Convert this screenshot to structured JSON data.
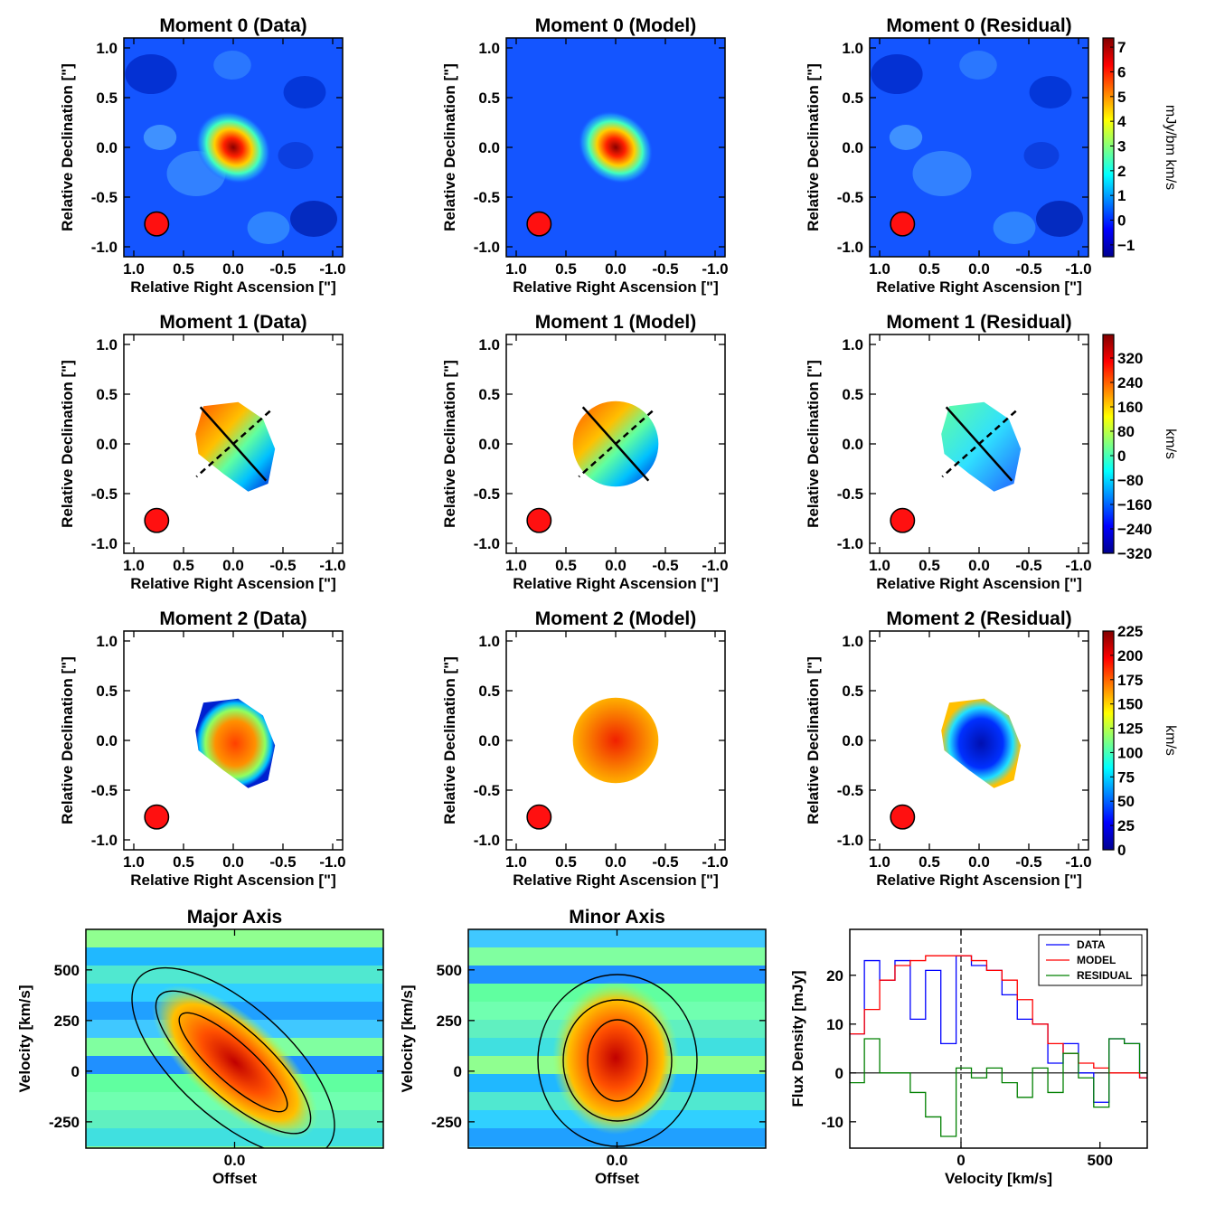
{
  "chart_data": [
    {
      "type": "image",
      "title": "Moment 0 (Data)",
      "xlabel": "Relative Right Ascension [\"]",
      "ylabel": "Relative Declination [\"]",
      "xlim": [
        1.1,
        -1.1
      ],
      "ylim": [
        -1.1,
        1.1
      ],
      "xticks": [
        {
          "value": 1,
          "label": "1.0"
        },
        0.5,
        {
          "value": 0,
          "label": "0.0"
        },
        -0.5,
        {
          "value": -1,
          "label": "-1.0"
        }
      ],
      "yticks": [
        {
          "value": 1,
          "label": "1.0"
        },
        0.5,
        {
          "value": 0,
          "label": "0.0"
        },
        -0.5,
        {
          "value": -1,
          "label": "-1.0"
        }
      ],
      "colormap": "jet"
    },
    {
      "type": "image",
      "title": "Moment 0 (Model)",
      "xlabel": "Relative Right Ascension [\"]",
      "ylabel": "Relative Declination [\"]",
      "xlim": [
        1.1,
        -1.1
      ],
      "ylim": [
        -1.1,
        1.1
      ],
      "xticks": [
        {
          "value": 1,
          "label": "1.0"
        },
        0.5,
        {
          "value": 0,
          "label": "0.0"
        },
        -0.5,
        {
          "value": -1,
          "label": "-1.0"
        }
      ],
      "yticks": [
        {
          "value": 1,
          "label": "1.0"
        },
        0.5,
        {
          "value": 0,
          "label": "0.0"
        },
        -0.5,
        {
          "value": -1,
          "label": "-1.0"
        }
      ],
      "colormap": "jet"
    },
    {
      "type": "image",
      "title": "Moment 0 (Residual)",
      "xlabel": "Relative Right Ascension [\"]",
      "ylabel": "Relative Declination [\"]",
      "xlim": [
        1.1,
        -1.1
      ],
      "ylim": [
        -1.1,
        1.1
      ],
      "xticks": [
        {
          "value": 1,
          "label": "1.0"
        },
        0.5,
        {
          "value": 0,
          "label": "0.0"
        },
        -0.5,
        {
          "value": -1,
          "label": "-1.0"
        }
      ],
      "yticks": [
        {
          "value": 1,
          "label": "1.0"
        },
        0.5,
        {
          "value": 0,
          "label": "0.0"
        },
        -0.5,
        {
          "value": -1,
          "label": "-1.0"
        }
      ],
      "colormap": "jet",
      "colorbar": {
        "label": "mJy/bm km/s",
        "lim": [
          -1.48,
          7.37
        ],
        "ticks": [
          7,
          6,
          5,
          4,
          3,
          2,
          1,
          0,
          {
            "value": -1,
            "label": "−1"
          }
        ]
      }
    },
    {
      "type": "image",
      "title": "Moment 1 (Data)",
      "xlabel": "Relative Right Ascension [\"]",
      "ylabel": "Relative Declination [\"]",
      "xlim": [
        1.1,
        -1.1
      ],
      "ylim": [
        -1.1,
        1.1
      ],
      "xticks": [
        {
          "value": 1,
          "label": "1.0"
        },
        0.5,
        {
          "value": 0,
          "label": "0.0"
        },
        -0.5,
        {
          "value": -1,
          "label": "-1.0"
        }
      ],
      "yticks": [
        {
          "value": 1,
          "label": "1.0"
        },
        0.5,
        {
          "value": 0,
          "label": "0.0"
        },
        -0.5,
        {
          "value": -1,
          "label": "-1.0"
        }
      ],
      "colormap": "jet"
    },
    {
      "type": "image",
      "title": "Moment 1 (Model)",
      "xlabel": "Relative Right Ascension [\"]",
      "ylabel": "Relative Declination [\"]",
      "xlim": [
        1.1,
        -1.1
      ],
      "ylim": [
        -1.1,
        1.1
      ],
      "xticks": [
        {
          "value": 1,
          "label": "1.0"
        },
        0.5,
        {
          "value": 0,
          "label": "0.0"
        },
        -0.5,
        {
          "value": -1,
          "label": "-1.0"
        }
      ],
      "yticks": [
        {
          "value": 1,
          "label": "1.0"
        },
        0.5,
        {
          "value": 0,
          "label": "0.0"
        },
        -0.5,
        {
          "value": -1,
          "label": "-1.0"
        }
      ],
      "colormap": "jet"
    },
    {
      "type": "image",
      "title": "Moment 1 (Residual)",
      "xlabel": "Relative Right Ascension [\"]",
      "ylabel": "Relative Declination [\"]",
      "xlim": [
        1.1,
        -1.1
      ],
      "ylim": [
        -1.1,
        1.1
      ],
      "xticks": [
        {
          "value": 1,
          "label": "1.0"
        },
        0.5,
        {
          "value": 0,
          "label": "0.0"
        },
        -0.5,
        {
          "value": -1,
          "label": "-1.0"
        }
      ],
      "yticks": [
        {
          "value": 1,
          "label": "1.0"
        },
        0.5,
        {
          "value": 0,
          "label": "0.0"
        },
        -0.5,
        {
          "value": -1,
          "label": "-1.0"
        }
      ],
      "colormap": "jet",
      "colorbar": {
        "label": "km/s",
        "lim": [
          -320,
          397
        ],
        "ticks": [
          320,
          240,
          160,
          80,
          0,
          {
            "value": -80,
            "label": "−80"
          },
          {
            "value": -160,
            "label": "−160"
          },
          {
            "value": -240,
            "label": "−240"
          },
          {
            "value": -320,
            "label": "−320"
          }
        ]
      }
    },
    {
      "type": "image",
      "title": "Moment 2 (Data)",
      "xlabel": "Relative Right Ascension [\"]",
      "ylabel": "Relative Declination [\"]",
      "xlim": [
        1.1,
        -1.1
      ],
      "ylim": [
        -1.1,
        1.1
      ],
      "xticks": [
        {
          "value": 1,
          "label": "1.0"
        },
        0.5,
        {
          "value": 0,
          "label": "0.0"
        },
        -0.5,
        {
          "value": -1,
          "label": "-1.0"
        }
      ],
      "yticks": [
        {
          "value": 1,
          "label": "1.0"
        },
        0.5,
        {
          "value": 0,
          "label": "0.0"
        },
        -0.5,
        {
          "value": -1,
          "label": "-1.0"
        }
      ],
      "colormap": "jet"
    },
    {
      "type": "image",
      "title": "Moment 2 (Model)",
      "xlabel": "Relative Right Ascension [\"]",
      "ylabel": "Relative Declination [\"]",
      "xlim": [
        1.1,
        -1.1
      ],
      "ylim": [
        -1.1,
        1.1
      ],
      "xticks": [
        {
          "value": 1,
          "label": "1.0"
        },
        0.5,
        {
          "value": 0,
          "label": "0.0"
        },
        -0.5,
        {
          "value": -1,
          "label": "-1.0"
        }
      ],
      "yticks": [
        {
          "value": 1,
          "label": "1.0"
        },
        0.5,
        {
          "value": 0,
          "label": "0.0"
        },
        -0.5,
        {
          "value": -1,
          "label": "-1.0"
        }
      ],
      "colormap": "jet"
    },
    {
      "type": "image",
      "title": "Moment 2 (Residual)",
      "xlabel": "Relative Right Ascension [\"]",
      "ylabel": "Relative Declination [\"]",
      "xlim": [
        1.1,
        -1.1
      ],
      "ylim": [
        -1.1,
        1.1
      ],
      "xticks": [
        {
          "value": 1,
          "label": "1.0"
        },
        0.5,
        {
          "value": 0,
          "label": "0.0"
        },
        -0.5,
        {
          "value": -1,
          "label": "-1.0"
        }
      ],
      "yticks": [
        {
          "value": 1,
          "label": "1.0"
        },
        0.5,
        {
          "value": 0,
          "label": "0.0"
        },
        -0.5,
        {
          "value": -1,
          "label": "-1.0"
        }
      ],
      "colormap": "jet",
      "colorbar": {
        "label": "km/s",
        "lim": [
          0,
          225
        ],
        "ticks": [
          225,
          200,
          175,
          150,
          125,
          100,
          75,
          50,
          25,
          0
        ]
      }
    },
    {
      "type": "image",
      "title": "Major Axis",
      "xlabel": "Offset",
      "ylabel": "Velocity [km/s]",
      "xlim": [
        -1.1,
        1.1
      ],
      "ylim": [
        -380,
        700
      ],
      "xticks": [
        {
          "value": 0,
          "label": "0.0"
        }
      ],
      "yticks": [
        500,
        250,
        0,
        -250
      ],
      "colormap": "jet"
    },
    {
      "type": "image",
      "title": "Minor Axis",
      "xlabel": "Offset",
      "ylabel": "Velocity [km/s]",
      "xlim": [
        -1.1,
        1.1
      ],
      "ylim": [
        -380,
        700
      ],
      "xticks": [
        {
          "value": 0,
          "label": "0.0"
        }
      ],
      "yticks": [
        500,
        250,
        0,
        -250
      ],
      "colormap": "jet"
    },
    {
      "type": "line",
      "step": true,
      "xlabel": "Velocity [km/s]",
      "ylabel": "Flux Density [mJy]",
      "xlim": [
        -400,
        670
      ],
      "ylim": [
        -15.4,
        29.4
      ],
      "xticks": [
        0,
        500
      ],
      "yticks": [
        -10,
        0,
        10,
        20
      ],
      "vlines": [
        0
      ],
      "hlines": [
        0
      ],
      "legend": "upper right",
      "x": [
        -375,
        -320,
        -265,
        -210,
        -155,
        -100,
        -45,
        10,
        65,
        120,
        175,
        230,
        285,
        340,
        395,
        450,
        505,
        560,
        615,
        670
      ],
      "series": [
        {
          "name": "DATA",
          "color": "#0000ff",
          "values": [
            8,
            23,
            19,
            23,
            11,
            21,
            6,
            24,
            22,
            21,
            16,
            11,
            10,
            2,
            6,
            0,
            -6,
            7,
            6,
            -1
          ]
        },
        {
          "name": "MODEL",
          "color": "#ff0000",
          "values": [
            8,
            13,
            19,
            22,
            23,
            24,
            24,
            24,
            23,
            21,
            19,
            15,
            10,
            6,
            4,
            2,
            1,
            0,
            0,
            -1
          ]
        },
        {
          "name": "RESIDUAL",
          "color": "#008000",
          "values": [
            -2,
            7,
            0,
            0,
            -4,
            -9,
            -13,
            1,
            -1,
            1,
            -2,
            -5,
            1,
            -4,
            4,
            -1,
            -7,
            7,
            6,
            0
          ]
        }
      ]
    }
  ]
}
